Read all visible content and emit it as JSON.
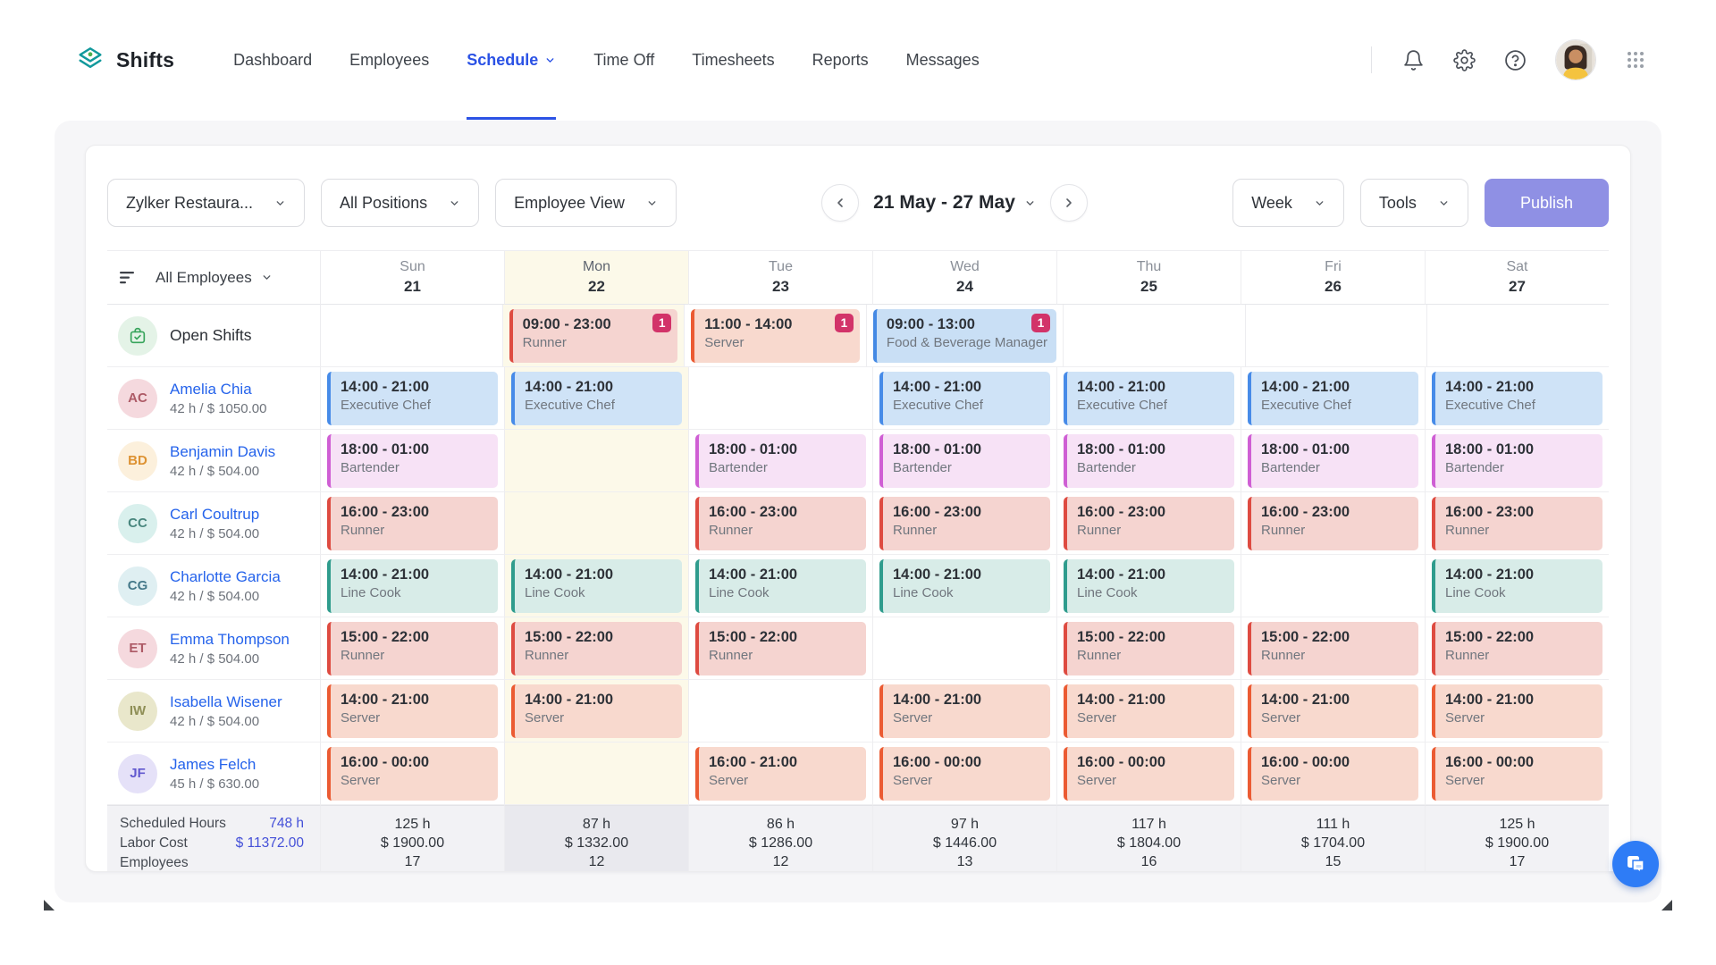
{
  "brand": {
    "name": "Shifts"
  },
  "nav": {
    "items": [
      {
        "label": "Dashboard",
        "active": false,
        "caret": false
      },
      {
        "label": "Employees",
        "active": false,
        "caret": false
      },
      {
        "label": "Schedule",
        "active": true,
        "caret": true
      },
      {
        "label": "Time Off",
        "active": false,
        "caret": false
      },
      {
        "label": "Timesheets",
        "active": false,
        "caret": false
      },
      {
        "label": "Reports",
        "active": false,
        "caret": false
      },
      {
        "label": "Messages",
        "active": false,
        "caret": false
      }
    ]
  },
  "header_icons": [
    "notifications-bell",
    "settings-gear",
    "help",
    "user-avatar",
    "app-grid"
  ],
  "toolbar": {
    "filters": [
      {
        "label": "Zylker Restaura..."
      },
      {
        "label": "All Positions"
      },
      {
        "label": "Employee View"
      }
    ],
    "date_range": "21 May - 27 May",
    "view_label": "Week",
    "tools_label": "Tools",
    "publish_label": "Publish"
  },
  "grid": {
    "employee_filter": "All Employees",
    "open_shifts_label": "Open Shifts",
    "days": [
      {
        "name": "Sun",
        "date": "21",
        "today": false
      },
      {
        "name": "Mon",
        "date": "22",
        "today": true
      },
      {
        "name": "Tue",
        "date": "23",
        "today": false
      },
      {
        "name": "Wed",
        "date": "24",
        "today": false
      },
      {
        "name": "Thu",
        "date": "25",
        "today": false
      },
      {
        "name": "Fri",
        "date": "26",
        "today": false
      },
      {
        "name": "Sat",
        "date": "27",
        "today": false
      }
    ],
    "open_row": {
      "shifts": [
        null,
        {
          "time": "09:00 - 23:00",
          "role": "Runner",
          "style": "runner",
          "badge": "1"
        },
        {
          "time": "11:00 - 14:00",
          "role": "Server",
          "style": "server",
          "badge": "1"
        },
        {
          "time": "09:00 - 13:00",
          "role": "Food & Beverage Manager",
          "style": "manager",
          "badge": "1"
        },
        null,
        null,
        null
      ]
    },
    "employees": [
      {
        "name": "Amelia Chia",
        "meta": "42 h / $ 1050.00",
        "initials": "AC",
        "avatar_bg": "#f5d9de",
        "avatar_fg": "#ad5a66",
        "shifts": [
          {
            "time": "14:00 - 21:00",
            "role": "Executive Chef",
            "style": "chef"
          },
          {
            "time": "14:00 - 21:00",
            "role": "Executive Chef",
            "style": "chef"
          },
          null,
          {
            "time": "14:00 - 21:00",
            "role": "Executive Chef",
            "style": "chef"
          },
          {
            "time": "14:00 - 21:00",
            "role": "Executive Chef",
            "style": "chef"
          },
          {
            "time": "14:00 - 21:00",
            "role": "Executive Chef",
            "style": "chef"
          },
          {
            "time": "14:00 - 21:00",
            "role": "Executive Chef",
            "style": "chef"
          }
        ]
      },
      {
        "name": "Benjamin Davis",
        "meta": "42 h / $ 504.00",
        "initials": "BD",
        "avatar_bg": "#fcf0dc",
        "avatar_fg": "#dd9232",
        "shifts": [
          {
            "time": "18:00 - 01:00",
            "role": "Bartender",
            "style": "bartender"
          },
          null,
          {
            "time": "18:00 - 01:00",
            "role": "Bartender",
            "style": "bartender"
          },
          {
            "time": "18:00 - 01:00",
            "role": "Bartender",
            "style": "bartender"
          },
          {
            "time": "18:00 - 01:00",
            "role": "Bartender",
            "style": "bartender"
          },
          {
            "time": "18:00 - 01:00",
            "role": "Bartender",
            "style": "bartender"
          },
          {
            "time": "18:00 - 01:00",
            "role": "Bartender",
            "style": "bartender"
          }
        ]
      },
      {
        "name": "Carl Coultrup",
        "meta": "42 h / $ 504.00",
        "initials": "CC",
        "avatar_bg": "#d9f0ed",
        "avatar_fg": "#48867e",
        "shifts": [
          {
            "time": "16:00 - 23:00",
            "role": "Runner",
            "style": "runner"
          },
          null,
          {
            "time": "16:00 - 23:00",
            "role": "Runner",
            "style": "runner"
          },
          {
            "time": "16:00 - 23:00",
            "role": "Runner",
            "style": "runner"
          },
          {
            "time": "16:00 - 23:00",
            "role": "Runner",
            "style": "runner"
          },
          {
            "time": "16:00 - 23:00",
            "role": "Runner",
            "style": "runner"
          },
          {
            "time": "16:00 - 23:00",
            "role": "Runner",
            "style": "runner"
          }
        ]
      },
      {
        "name": "Charlotte Garcia",
        "meta": "42 h / $ 504.00",
        "initials": "CG",
        "avatar_bg": "#dfeff2",
        "avatar_fg": "#45798a",
        "shifts": [
          {
            "time": "14:00 - 21:00",
            "role": "Line Cook",
            "style": "linecook"
          },
          {
            "time": "14:00 - 21:00",
            "role": "Line Cook",
            "style": "linecook"
          },
          {
            "time": "14:00 - 21:00",
            "role": "Line Cook",
            "style": "linecook"
          },
          {
            "time": "14:00 - 21:00",
            "role": "Line Cook",
            "style": "linecook"
          },
          {
            "time": "14:00 - 21:00",
            "role": "Line Cook",
            "style": "linecook"
          },
          null,
          {
            "time": "14:00 - 21:00",
            "role": "Line Cook",
            "style": "linecook"
          }
        ]
      },
      {
        "name": "Emma Thompson",
        "meta": "42 h / $ 504.00",
        "initials": "ET",
        "avatar_bg": "#f5d9de",
        "avatar_fg": "#ad5a66",
        "shifts": [
          {
            "time": "15:00 - 22:00",
            "role": "Runner",
            "style": "runner"
          },
          {
            "time": "15:00 - 22:00",
            "role": "Runner",
            "style": "runner"
          },
          {
            "time": "15:00 - 22:00",
            "role": "Runner",
            "style": "runner"
          },
          null,
          {
            "time": "15:00 - 22:00",
            "role": "Runner",
            "style": "runner"
          },
          {
            "time": "15:00 - 22:00",
            "role": "Runner",
            "style": "runner"
          },
          {
            "time": "15:00 - 22:00",
            "role": "Runner",
            "style": "runner"
          }
        ]
      },
      {
        "name": "Isabella Wisener",
        "meta": "42 h / $ 504.00",
        "initials": "IW",
        "avatar_bg": "#e9e7cb",
        "avatar_fg": "#8f8f56",
        "shifts": [
          {
            "time": "14:00 - 21:00",
            "role": "Server",
            "style": "server"
          },
          {
            "time": "14:00 - 21:00",
            "role": "Server",
            "style": "server"
          },
          null,
          {
            "time": "14:00 - 21:00",
            "role": "Server",
            "style": "server"
          },
          {
            "time": "14:00 - 21:00",
            "role": "Server",
            "style": "server"
          },
          {
            "time": "14:00 - 21:00",
            "role": "Server",
            "style": "server"
          },
          {
            "time": "14:00 - 21:00",
            "role": "Server",
            "style": "server"
          }
        ]
      },
      {
        "name": "James Felch",
        "meta": "45 h / $ 630.00",
        "initials": "JF",
        "avatar_bg": "#e5e1f8",
        "avatar_fg": "#6158cf",
        "shifts": [
          {
            "time": "16:00 - 00:00",
            "role": "Server",
            "style": "server"
          },
          null,
          {
            "time": "16:00 - 21:00",
            "role": "Server",
            "style": "server"
          },
          {
            "time": "16:00 - 00:00",
            "role": "Server",
            "style": "server"
          },
          {
            "time": "16:00 - 00:00",
            "role": "Server",
            "style": "server"
          },
          {
            "time": "16:00 - 00:00",
            "role": "Server",
            "style": "server"
          },
          {
            "time": "16:00 - 00:00",
            "role": "Server",
            "style": "server"
          }
        ]
      }
    ],
    "summary": {
      "left": [
        {
          "label": "Scheduled Hours",
          "value": "748 h"
        },
        {
          "label": "Labor Cost",
          "value": "$ 11372.00"
        },
        {
          "label": "Employees",
          "value": ""
        }
      ],
      "days": [
        {
          "hours": "125 h",
          "cost": "$ 1900.00",
          "employees": "17"
        },
        {
          "hours": "87 h",
          "cost": "$ 1332.00",
          "employees": "12"
        },
        {
          "hours": "86 h",
          "cost": "$ 1286.00",
          "employees": "12"
        },
        {
          "hours": "97 h",
          "cost": "$ 1446.00",
          "employees": "13"
        },
        {
          "hours": "117 h",
          "cost": "$ 1804.00",
          "employees": "16"
        },
        {
          "hours": "111 h",
          "cost": "$ 1704.00",
          "employees": "15"
        },
        {
          "hours": "125 h",
          "cost": "$ 1900.00",
          "employees": "17"
        }
      ]
    }
  },
  "shift_styles": {
    "runner": {
      "border": "#de4b41",
      "bg": "#f5d4d0"
    },
    "server": {
      "border": "#eb5b33",
      "bg": "#f8d9ce"
    },
    "manager": {
      "border": "#4489e4",
      "bg": "#c9dff5"
    },
    "chef": {
      "border": "#478be8",
      "bg": "#cfe3f7"
    },
    "bartender": {
      "border": "#cf5fd4",
      "bg": "#f7e2f6"
    },
    "linecook": {
      "border": "#2f9c8d",
      "bg": "#d8ece8"
    }
  },
  "colors": {
    "accent_blue": "#2b52e5",
    "publish_bg": "#8f90e4",
    "badge_bg": "#d23369",
    "today_tint": "#fcf9e9",
    "link_blue": "#2563eb",
    "fab_blue": "#2e7cf6",
    "brand_teal": "#12999c",
    "open_shift_green": "#37a45b"
  }
}
